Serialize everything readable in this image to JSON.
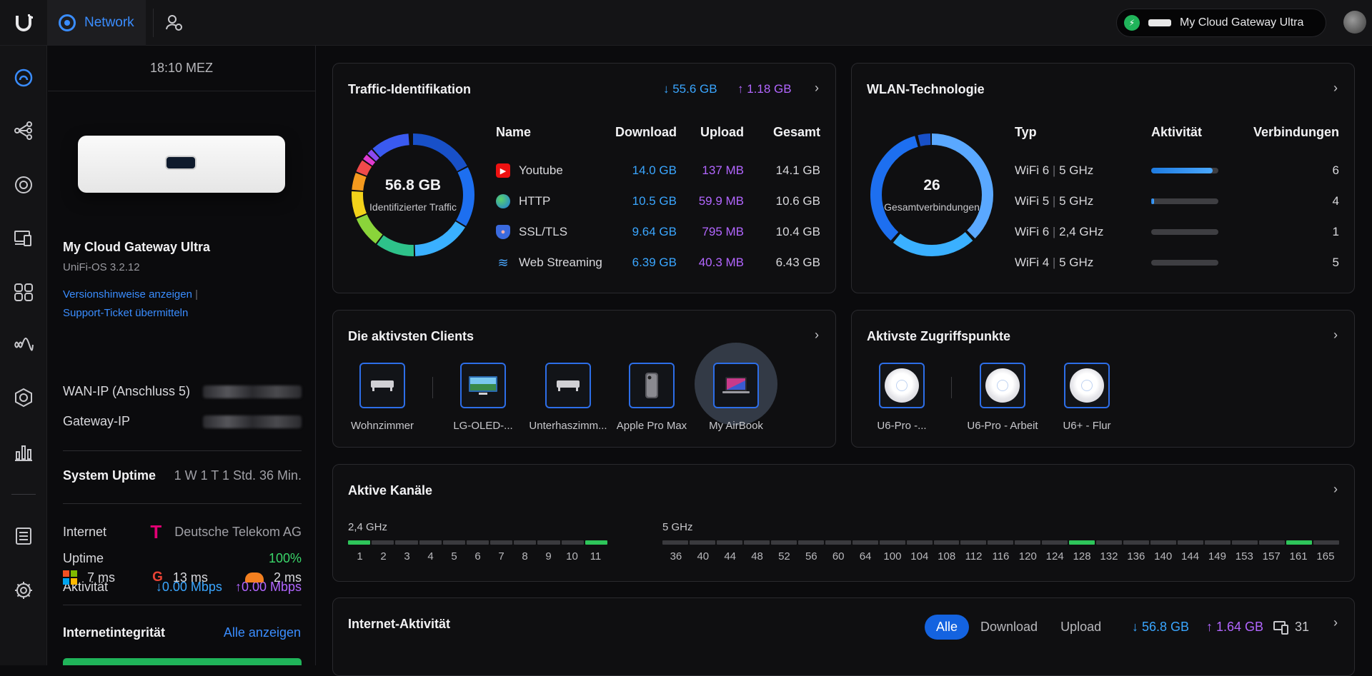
{
  "topbar": {
    "app_tab": "Network",
    "gateway_pill": "My Cloud Gateway Ultra"
  },
  "left": {
    "time": "18:10 MEZ",
    "device_name": "My Cloud Gateway Ultra",
    "os_version": "UniFi-OS 3.2.12",
    "release_notes_link": "Versionshinweise anzeigen",
    "support_link": "Support-Ticket übermitteln",
    "wan_ip_label": "WAN-IP (Anschluss 5)",
    "gateway_ip_label": "Gateway-IP",
    "uptime_label": "System Uptime",
    "uptime_value": "1 W 1 T 1 Std. 36 Min.",
    "internet_label": "Internet",
    "isp": "Deutsche Telekom AG",
    "isp_uptime_label": "Uptime",
    "isp_uptime_value": "100%",
    "activity_label": "Aktivität",
    "down_rate": "↓0.00 Mbps",
    "up_rate": "↑0.00 Mbps",
    "latency": [
      {
        "icon": "microsoft-icon",
        "value": "7 ms"
      },
      {
        "icon": "google-icon",
        "value": "13 ms"
      },
      {
        "icon": "cloudflare-icon",
        "value": "2 ms"
      }
    ],
    "integrity_title": "Internetintegrität",
    "integrity_link": "Alle anzeigen"
  },
  "traffic": {
    "title": "Traffic-Identifikation",
    "down_total": "↓ 55.6 GB",
    "up_total": "↑ 1.18 GB",
    "donut_value": "56.8 GB",
    "donut_label": "Identifizierter Traffic",
    "headers": [
      "Name",
      "Download",
      "Upload",
      "Gesamt"
    ],
    "rows": [
      {
        "name": "Youtube",
        "icon": "youtube-icon",
        "download": "14.0 GB",
        "upload": "137 MB",
        "total": "14.1 GB"
      },
      {
        "name": "HTTP",
        "icon": "globe-icon",
        "download": "10.5 GB",
        "upload": "59.9 MB",
        "total": "10.6 GB"
      },
      {
        "name": "SSL/TLS",
        "icon": "shield-icon",
        "download": "9.64 GB",
        "upload": "795 MB",
        "total": "10.4 GB"
      },
      {
        "name": "Web Streaming",
        "icon": "streaming-icon",
        "download": "6.39 GB",
        "upload": "40.3 MB",
        "total": "6.43 GB"
      }
    ]
  },
  "wlan": {
    "title": "WLAN-Technologie",
    "donut_value": "26",
    "donut_label": "Gesamtverbindungen",
    "headers": [
      "Typ",
      "Aktivität",
      "Verbindungen"
    ],
    "rows": [
      {
        "gen": "WiFi 6",
        "band": "5 GHz",
        "activity": 0.92,
        "count": "6"
      },
      {
        "gen": "WiFi 5",
        "band": "5 GHz",
        "activity": 0.04,
        "count": "4"
      },
      {
        "gen": "WiFi 6",
        "band": "2,4 GHz",
        "activity": 0.0,
        "count": "1"
      },
      {
        "gen": "WiFi 4",
        "band": "5 GHz",
        "activity": 0.0,
        "count": "5"
      }
    ]
  },
  "clients": {
    "title": "Die aktivsten Clients",
    "items": [
      "Wohnzimmer",
      "LG-OLED-...",
      "Unterhaszimm...",
      "Apple Pro Max",
      "My AirBook"
    ]
  },
  "aps": {
    "title": "Aktivste Zugriffspunkte",
    "items": [
      "U6-Pro -...",
      "U6-Pro - Arbeit",
      "U6+ - Flur"
    ]
  },
  "channels": {
    "title": "Aktive Kanäle",
    "band24_label": "2,4 GHz",
    "band5_label": "5 GHz",
    "ch24": [
      "1",
      "2",
      "3",
      "4",
      "5",
      "6",
      "7",
      "8",
      "9",
      "10",
      "11"
    ],
    "ch24_active": [
      "1",
      "11"
    ],
    "ch5": [
      "36",
      "40",
      "44",
      "48",
      "52",
      "56",
      "60",
      "64",
      "100",
      "104",
      "108",
      "112",
      "116",
      "120",
      "124",
      "128",
      "132",
      "136",
      "140",
      "144",
      "149",
      "153",
      "157",
      "161",
      "165"
    ],
    "ch5_active": [
      "128",
      "161"
    ]
  },
  "activity": {
    "title": "Internet-Aktivität",
    "filters": [
      "Alle",
      "Download",
      "Upload"
    ],
    "active_filter": "Alle",
    "down": "↓ 56.8 GB",
    "up": "↑ 1.64 GB",
    "clients": "31"
  },
  "colors": {
    "accent": "#3a8dff",
    "download": "#3aa6ff",
    "upload": "#b266ff",
    "ok": "#3ad66a"
  }
}
